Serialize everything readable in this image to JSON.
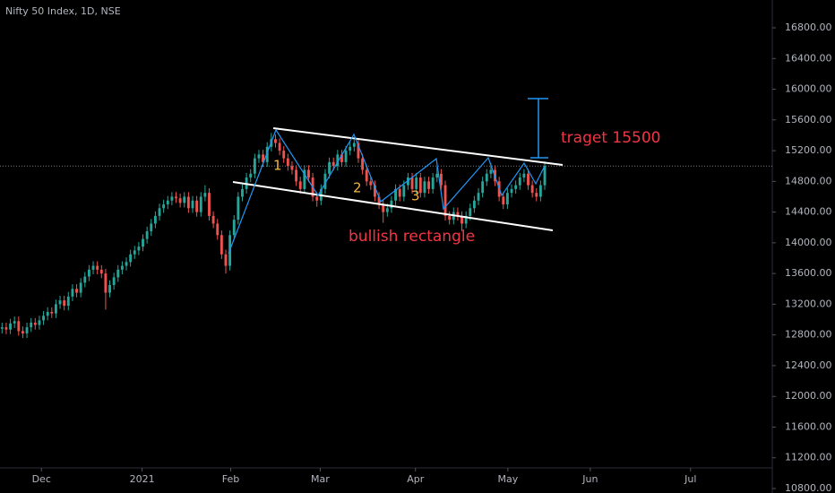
{
  "chart_data": {
    "type": "candlestick",
    "title": "Nifty 50 Index, 1D, NSE",
    "up_color": "#26a69a",
    "down_color": "#ef5350",
    "xlim": [
      -0.5,
      185.5
    ],
    "ylim": [
      10800,
      16800
    ],
    "xticks": [
      {
        "value": 9.5,
        "label": "Dec"
      },
      {
        "value": 33.8,
        "label": "2021"
      },
      {
        "value": 55.2,
        "label": "Feb"
      },
      {
        "value": 76.8,
        "label": "Mar"
      },
      {
        "value": 99.8,
        "label": "Apr"
      },
      {
        "value": 122.1,
        "label": "May"
      },
      {
        "value": 142,
        "label": "Jun"
      },
      {
        "value": 166.2,
        "label": "Jul"
      }
    ],
    "yticks": [
      {
        "value": 10800,
        "label": "10800.00"
      },
      {
        "value": 11200,
        "label": "11200.00"
      },
      {
        "value": 11600,
        "label": "11600.00"
      },
      {
        "value": 12000,
        "label": "12000.00"
      },
      {
        "value": 12400,
        "label": "12400.00"
      },
      {
        "value": 12800,
        "label": "12800.00"
      },
      {
        "value": 13200,
        "label": "13200.00"
      },
      {
        "value": 13600,
        "label": "13600.00"
      },
      {
        "value": 14000,
        "label": "14000.00"
      },
      {
        "value": 14400,
        "label": "14400.00"
      },
      {
        "value": 14800,
        "label": "14800.00"
      },
      {
        "value": 15200,
        "label": "15200.00"
      },
      {
        "value": 15600,
        "label": "15600.00"
      },
      {
        "value": 16000,
        "label": "16000.00"
      },
      {
        "value": 16400,
        "label": "16400.00"
      },
      {
        "value": 16800,
        "label": "16800.00"
      }
    ],
    "ohlc": [
      [
        12880,
        12960,
        12820,
        12900
      ],
      [
        12900,
        12960,
        12810,
        12870
      ],
      [
        12870,
        13010,
        12810,
        12950
      ],
      [
        12950,
        13040,
        12890,
        12980
      ],
      [
        12980,
        13040,
        12790,
        12850
      ],
      [
        12850,
        12910,
        12760,
        12820
      ],
      [
        12820,
        12960,
        12760,
        12900
      ],
      [
        12900,
        13020,
        12840,
        12960
      ],
      [
        12960,
        13020,
        12870,
        12930
      ],
      [
        12930,
        13050,
        12870,
        12990
      ],
      [
        12990,
        13110,
        12930,
        13050
      ],
      [
        13050,
        13160,
        12990,
        13100
      ],
      [
        13100,
        13160,
        13020,
        13080
      ],
      [
        13080,
        13260,
        13020,
        13200
      ],
      [
        13200,
        13310,
        13140,
        13250
      ],
      [
        13250,
        13310,
        13120,
        13180
      ],
      [
        13180,
        13360,
        13120,
        13300
      ],
      [
        13300,
        13460,
        13240,
        13400
      ],
      [
        13400,
        13460,
        13290,
        13350
      ],
      [
        13350,
        13540,
        13290,
        13480
      ],
      [
        13480,
        13620,
        13420,
        13560
      ],
      [
        13560,
        13710,
        13500,
        13650
      ],
      [
        13650,
        13760,
        13590,
        13700
      ],
      [
        13700,
        13760,
        13590,
        13650
      ],
      [
        13650,
        13710,
        13540,
        13600
      ],
      [
        13600,
        13660,
        13130,
        13350
      ],
      [
        13350,
        13510,
        13290,
        13450
      ],
      [
        13450,
        13610,
        13390,
        13550
      ],
      [
        13550,
        13710,
        13490,
        13650
      ],
      [
        13650,
        13760,
        13590,
        13700
      ],
      [
        13700,
        13810,
        13640,
        13750
      ],
      [
        13750,
        13910,
        13690,
        13850
      ],
      [
        13850,
        13960,
        13790,
        13900
      ],
      [
        13900,
        14010,
        13840,
        13950
      ],
      [
        13950,
        14110,
        13890,
        14050
      ],
      [
        14050,
        14210,
        13990,
        14150
      ],
      [
        14150,
        14310,
        14090,
        14250
      ],
      [
        14250,
        14410,
        14190,
        14350
      ],
      [
        14350,
        14510,
        14290,
        14450
      ],
      [
        14450,
        14560,
        14390,
        14500
      ],
      [
        14500,
        14610,
        14440,
        14550
      ],
      [
        14550,
        14660,
        14490,
        14600
      ],
      [
        14600,
        14660,
        14520,
        14580
      ],
      [
        14580,
        14640,
        14460,
        14520
      ],
      [
        14520,
        14660,
        14460,
        14600
      ],
      [
        14600,
        14660,
        14390,
        14450
      ],
      [
        14450,
        14610,
        14390,
        14550
      ],
      [
        14550,
        14610,
        14340,
        14400
      ],
      [
        14400,
        14660,
        14340,
        14600
      ],
      [
        14600,
        14750,
        14540,
        14650
      ],
      [
        14650,
        14710,
        14290,
        14350
      ],
      [
        14350,
        14410,
        14190,
        14250
      ],
      [
        14250,
        14310,
        14040,
        14100
      ],
      [
        14100,
        14160,
        13790,
        13850
      ],
      [
        13850,
        13910,
        13600,
        13700
      ],
      [
        13700,
        14160,
        13640,
        14100
      ],
      [
        14100,
        14360,
        14040,
        14300
      ],
      [
        14300,
        14660,
        14240,
        14600
      ],
      [
        14600,
        14760,
        14540,
        14700
      ],
      [
        14700,
        14910,
        14640,
        14850
      ],
      [
        14850,
        14960,
        14790,
        14900
      ],
      [
        14900,
        15160,
        14840,
        15100
      ],
      [
        15100,
        15210,
        15040,
        15150
      ],
      [
        15150,
        15210,
        14990,
        15050
      ],
      [
        15050,
        15310,
        14990,
        15250
      ],
      [
        15250,
        15430,
        15190,
        15350
      ],
      [
        15350,
        15410,
        15240,
        15300
      ],
      [
        15300,
        15360,
        15140,
        15200
      ],
      [
        15200,
        15260,
        15040,
        15100
      ],
      [
        15100,
        15160,
        14940,
        15000
      ],
      [
        15000,
        15060,
        14890,
        14950
      ],
      [
        14950,
        15010,
        14740,
        14800
      ],
      [
        14800,
        14860,
        14640,
        14700
      ],
      [
        14700,
        15010,
        14640,
        14950
      ],
      [
        14950,
        15010,
        14790,
        14850
      ],
      [
        14850,
        14910,
        14540,
        14600
      ],
      [
        14600,
        14660,
        14470,
        14550
      ],
      [
        14550,
        14760,
        14490,
        14700
      ],
      [
        14700,
        14960,
        14640,
        14900
      ],
      [
        14900,
        15110,
        14840,
        15050
      ],
      [
        15050,
        15110,
        14940,
        15000
      ],
      [
        15000,
        15210,
        14940,
        15150
      ],
      [
        15150,
        15210,
        14990,
        15050
      ],
      [
        15050,
        15260,
        14990,
        15200
      ],
      [
        15200,
        15310,
        15140,
        15250
      ],
      [
        15250,
        15340,
        15190,
        15300
      ],
      [
        15300,
        15360,
        15040,
        15100
      ],
      [
        15100,
        15160,
        14890,
        14950
      ],
      [
        14950,
        15010,
        14740,
        14800
      ],
      [
        14800,
        14860,
        14690,
        14750
      ],
      [
        14750,
        14810,
        14540,
        14600
      ],
      [
        14600,
        14660,
        14440,
        14500
      ],
      [
        14500,
        14560,
        14260,
        14400
      ],
      [
        14400,
        14510,
        14340,
        14450
      ],
      [
        14450,
        14610,
        14390,
        14550
      ],
      [
        14550,
        14760,
        14490,
        14700
      ],
      [
        14700,
        14760,
        14540,
        14600
      ],
      [
        14600,
        14810,
        14540,
        14750
      ],
      [
        14750,
        14910,
        14690,
        14850
      ],
      [
        14850,
        14910,
        14640,
        14700
      ],
      [
        14700,
        14910,
        14640,
        14850
      ],
      [
        14850,
        14910,
        14590,
        14650
      ],
      [
        14650,
        14860,
        14590,
        14800
      ],
      [
        14800,
        14860,
        14640,
        14700
      ],
      [
        14700,
        14910,
        14640,
        14850
      ],
      [
        14850,
        14990,
        14790,
        14900
      ],
      [
        14900,
        14960,
        14690,
        14750
      ],
      [
        14750,
        14810,
        14290,
        14350
      ],
      [
        14350,
        14410,
        14240,
        14300
      ],
      [
        14300,
        14460,
        14240,
        14400
      ],
      [
        14400,
        14460,
        14290,
        14350
      ],
      [
        14350,
        14410,
        14150,
        14250
      ],
      [
        14250,
        14410,
        14190,
        14350
      ],
      [
        14350,
        14510,
        14290,
        14450
      ],
      [
        14450,
        14610,
        14390,
        14550
      ],
      [
        14550,
        14710,
        14490,
        14650
      ],
      [
        14650,
        14860,
        14590,
        14800
      ],
      [
        14800,
        14960,
        14740,
        14900
      ],
      [
        14900,
        15040,
        14840,
        14950
      ],
      [
        14950,
        15010,
        14740,
        14800
      ],
      [
        14800,
        14860,
        14540,
        14600
      ],
      [
        14600,
        14660,
        14440,
        14500
      ],
      [
        14500,
        14710,
        14440,
        14650
      ],
      [
        14650,
        14760,
        14590,
        14700
      ],
      [
        14700,
        14810,
        14640,
        14750
      ],
      [
        14750,
        14910,
        14690,
        14850
      ],
      [
        14850,
        14960,
        14790,
        14900
      ],
      [
        14900,
        14960,
        14690,
        14750
      ],
      [
        14750,
        14810,
        14590,
        14650
      ],
      [
        14650,
        14710,
        14540,
        14600
      ],
      [
        14600,
        14810,
        14540,
        14750
      ],
      [
        14750,
        15060,
        14690,
        15000
      ]
    ],
    "annotations": [
      "1",
      "2",
      "3",
      "bullish rectangle",
      "traget 15500"
    ]
  }
}
